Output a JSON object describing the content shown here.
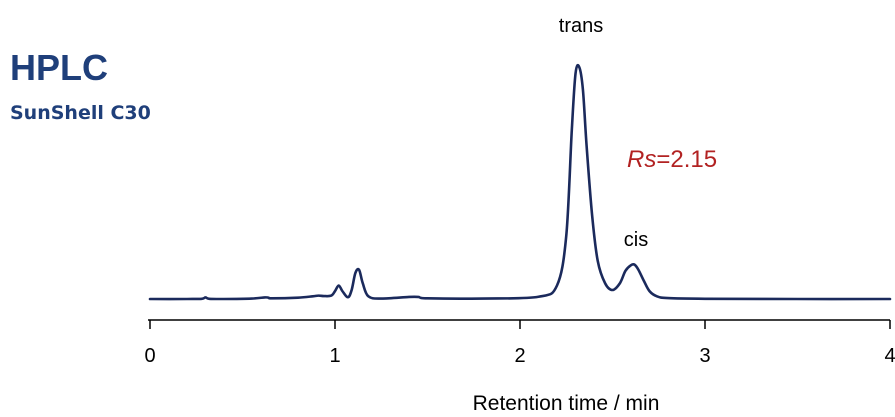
{
  "chart_data": {
    "type": "line",
    "title": "HPLC",
    "subtitle": "SunShell C30",
    "xlabel": "Retention time / min",
    "ylabel": "",
    "xlim": [
      0,
      4
    ],
    "x_ticks": [
      "0",
      "1",
      "2",
      "3",
      "4"
    ],
    "grid": false,
    "series": [
      {
        "color": "#1b2a5c",
        "x": [
          0.0,
          0.2,
          0.28,
          0.3,
          0.32,
          0.4,
          0.55,
          0.62,
          0.64,
          0.66,
          0.8,
          0.88,
          0.91,
          0.94,
          0.98,
          1.0,
          1.02,
          1.04,
          1.07,
          1.09,
          1.11,
          1.13,
          1.15,
          1.18,
          1.25,
          1.4,
          1.45,
          1.5,
          1.8,
          2.1,
          2.2,
          2.25,
          2.28,
          2.3,
          2.32,
          2.34,
          2.36,
          2.39,
          2.42,
          2.46,
          2.5,
          2.54,
          2.57,
          2.6,
          2.62,
          2.64,
          2.67,
          2.7,
          2.74,
          2.8,
          3.0,
          3.5,
          4.0
        ],
        "y": [
          0.0,
          0.0,
          0.1,
          0.7,
          0.1,
          0.0,
          0.2,
          0.7,
          0.6,
          0.3,
          0.6,
          1.2,
          1.5,
          1.3,
          1.5,
          3.5,
          6.0,
          3.5,
          0.8,
          4.0,
          11.5,
          13.0,
          7.0,
          1.2,
          0.2,
          0.9,
          0.9,
          0.3,
          0.2,
          1.0,
          6.0,
          28.0,
          75.0,
          100.0,
          103.0,
          93.0,
          68.0,
          37.0,
          17.0,
          7.0,
          4.0,
          7.0,
          12.5,
          15.0,
          15.2,
          13.0,
          8.0,
          3.5,
          1.2,
          0.4,
          0.1,
          0.0,
          0.0
        ]
      }
    ],
    "annotations": [
      {
        "text": "trans",
        "x": 2.32
      },
      {
        "text": "cis",
        "x": 2.63
      },
      {
        "prefix": "Rs",
        "text": "=2.15",
        "color": "#b22222"
      }
    ]
  }
}
